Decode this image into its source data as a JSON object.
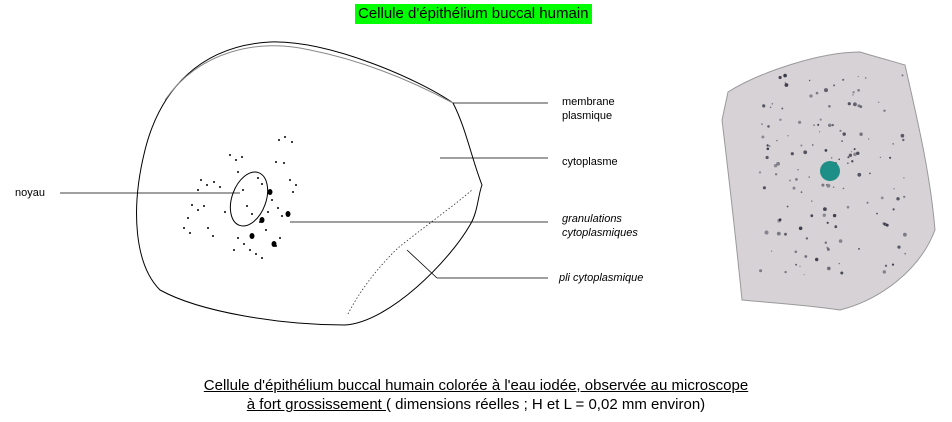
{
  "title": "Cellule d'épithélium buccal humain",
  "labels": {
    "noyau": "noyau",
    "membrane_line1": "membrane",
    "membrane_line2": "plasmique",
    "cytoplasme": "cytoplasme",
    "granulations_line1": "granulations",
    "granulations_line2": "cytoplasmiques",
    "pli": "pli cytoplasmique"
  },
  "caption": {
    "line1": "Cellule d'épithélium buccal humain colorée à l'eau iodée, observée au microscope",
    "line2_underlined": "à fort grossissement ",
    "line2_rest": " ( dimensions réelles ; H et L = 0,02 mm environ)"
  },
  "colors": {
    "title_bg": "#00ff00",
    "nucleus_photo": "#1e8f86",
    "cell_photo": "#d8d4d8"
  }
}
